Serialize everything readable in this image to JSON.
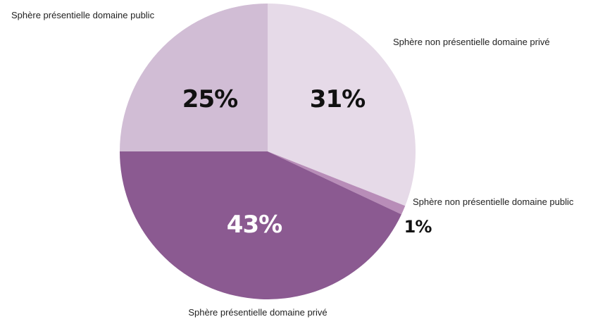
{
  "chart_data": {
    "type": "pie",
    "title": "",
    "start_angle_deg": 0,
    "direction": "clockwise",
    "legend": "none",
    "slices": [
      {
        "label": "Sphère non présentielle domaine privé",
        "value": 31,
        "display": "31%",
        "color": "#e6dae8",
        "value_color": "#111111"
      },
      {
        "label": "Sphère non présentielle domaine public",
        "value": 1,
        "display": "1%",
        "color": "#b88db8",
        "value_color": "#111111"
      },
      {
        "label": "Sphère présentielle domaine privé",
        "value": 43,
        "display": "43%",
        "color": "#8b5a91",
        "value_color": "#ffffff"
      },
      {
        "label": "Sphère présentielle domaine public",
        "value": 25,
        "display": "25%",
        "color": "#d1bdd5",
        "value_color": "#111111"
      }
    ]
  }
}
